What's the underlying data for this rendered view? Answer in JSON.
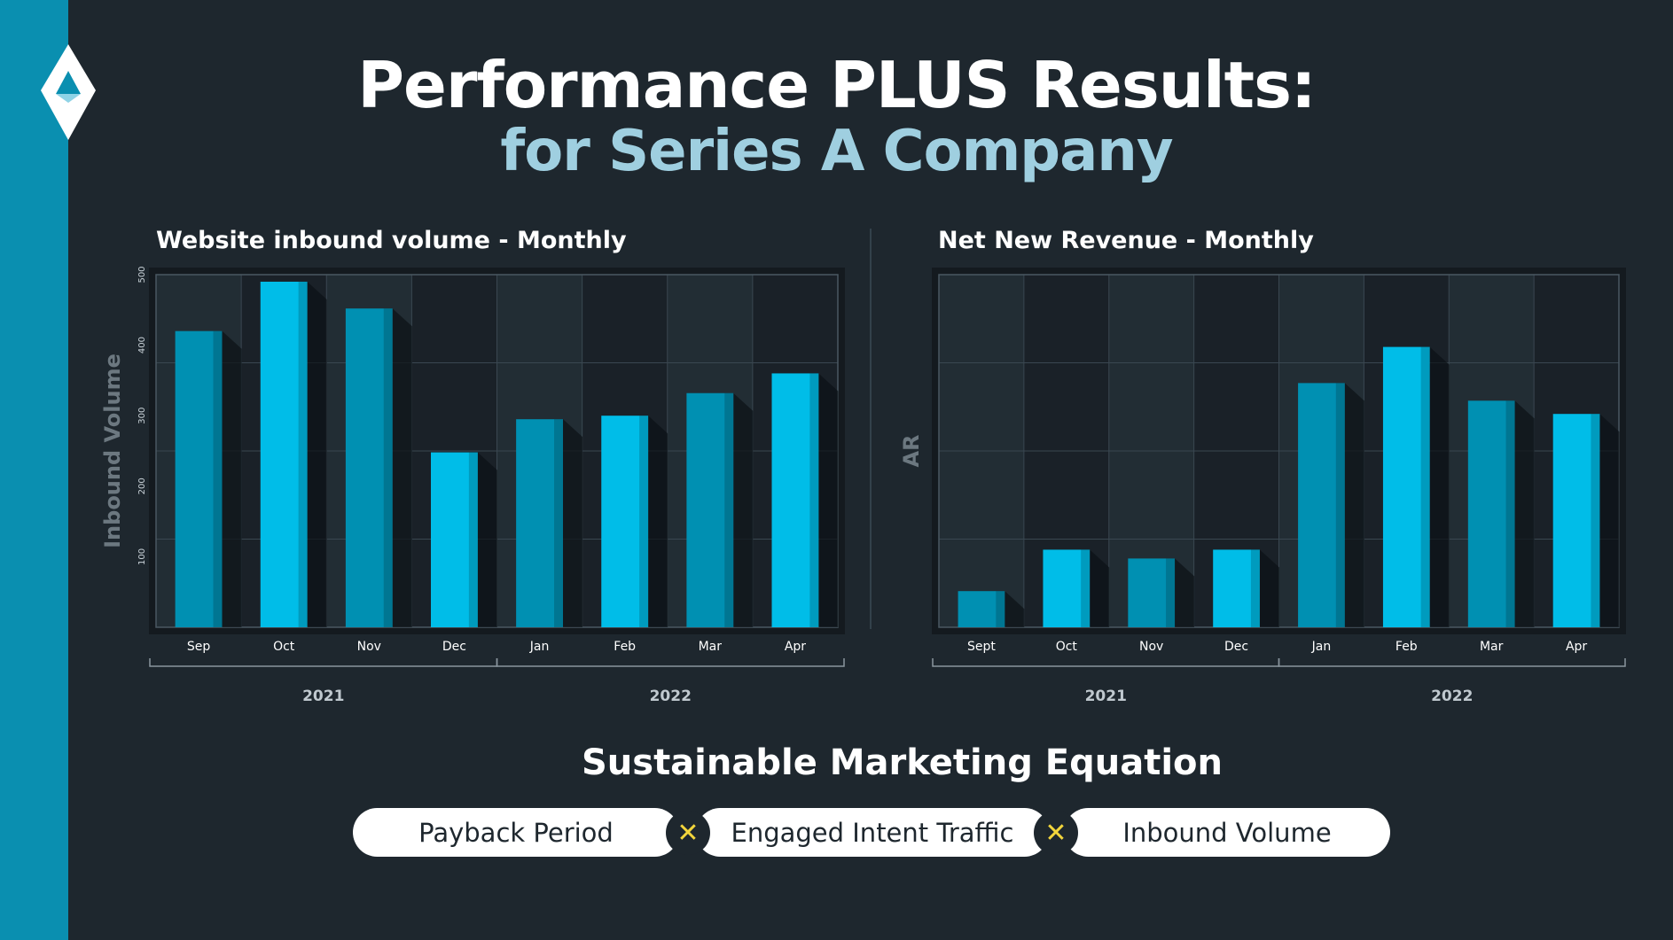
{
  "header": {
    "title": "Performance PLUS Results:",
    "subtitle": "for Series A Company"
  },
  "chart_data": [
    {
      "type": "bar",
      "title": "Website inbound volume - Monthly",
      "ylabel": "Inbound Volume",
      "xlabel": "",
      "categories": [
        "Sep",
        "Oct",
        "Nov",
        "Dec",
        "Jan",
        "Feb",
        "Mar",
        "Apr"
      ],
      "values": [
        420,
        490,
        452,
        248,
        295,
        300,
        332,
        360
      ],
      "ylim": [
        0,
        500
      ],
      "yticks": [
        100,
        200,
        300,
        400,
        500
      ],
      "year_groups": [
        {
          "label": "2021",
          "categories": [
            "Sep",
            "Oct",
            "Nov",
            "Dec"
          ]
        },
        {
          "label": "2022",
          "categories": [
            "Jan",
            "Feb",
            "Mar",
            "Apr"
          ]
        }
      ],
      "grid": true,
      "colors": {
        "dark": "#0090b2",
        "light": "#00bde8",
        "plot_bg": "#1a2128"
      }
    },
    {
      "type": "bar",
      "title": "Net New Revenue - Monthly",
      "ylabel": "AR",
      "xlabel": "",
      "categories": [
        "Sept",
        "Oct",
        "Nov",
        "Dec",
        "Jan",
        "Feb",
        "Mar",
        "Apr"
      ],
      "values": [
        0.41,
        0.88,
        0.78,
        0.88,
        2.77,
        3.18,
        2.57,
        2.42
      ],
      "ylim": [
        0,
        4
      ],
      "yticks": [],
      "year_groups": [
        {
          "label": "2021",
          "categories": [
            "Sept",
            "Oct",
            "Nov",
            "Dec"
          ]
        },
        {
          "label": "2022",
          "categories": [
            "Jan",
            "Feb",
            "Mar",
            "Apr"
          ]
        }
      ],
      "grid": true,
      "colors": {
        "dark": "#0090b2",
        "light": "#00bde8",
        "plot_bg": "#1a2128"
      }
    }
  ],
  "equation": {
    "title": "Sustainable Marketing Equation",
    "terms": [
      "Payback Period",
      "Engaged Intent Traffic",
      "Inbound Volume"
    ],
    "operator": "✕",
    "operator_color": "#f2d53c"
  },
  "colors": {
    "background": "#1e272e",
    "sidebar": "#0a8fb0",
    "subtitle": "#9fcfe0"
  }
}
